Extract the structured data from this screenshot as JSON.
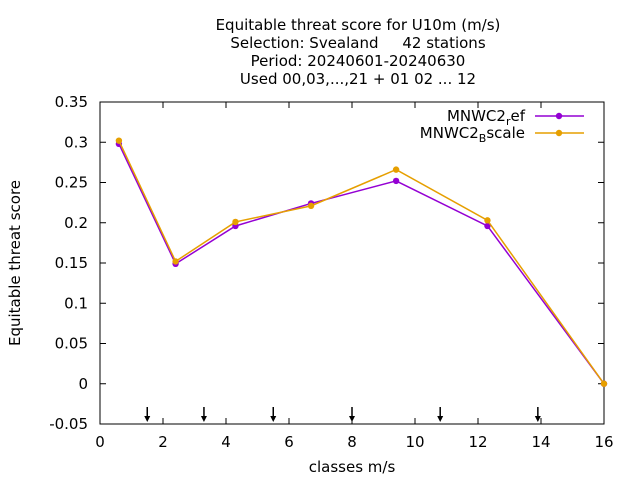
{
  "chart_data": {
    "type": "line",
    "title_lines": [
      "Equitable threat score  for U10m (m/s)",
      "Selection: Svealand     42 stations",
      "Period: 20240601-20240630",
      "Used 00,03,...,21 + 01 02 ... 12"
    ],
    "xlabel": "classes m/s",
    "ylabel": "Equitable threat score",
    "xlim": [
      0,
      16
    ],
    "ylim": [
      -0.05,
      0.35
    ],
    "x_ticks": [
      0,
      2,
      4,
      6,
      8,
      10,
      12,
      14,
      16
    ],
    "x_tick_labels": [
      "0",
      "2",
      "4",
      "6",
      "8",
      "10",
      "12",
      "14",
      "16"
    ],
    "y_ticks": [
      -0.05,
      0,
      0.05,
      0.1,
      0.15,
      0.2,
      0.25,
      0.3,
      0.35
    ],
    "y_tick_labels": [
      "-0.05",
      "0",
      "0.05",
      "0.1",
      "0.15",
      "0.2",
      "0.25",
      "0.3",
      "0.35"
    ],
    "grid": false,
    "legend_position": "top-right",
    "series": [
      {
        "name_base": "MNWC2",
        "name_sub": "r",
        "name_rest": "ef",
        "color": "#9400d3",
        "x": [
          0.6,
          2.4,
          4.3,
          6.7,
          9.4,
          12.3,
          16.0
        ],
        "y": [
          0.298,
          0.149,
          0.196,
          0.224,
          0.252,
          0.196,
          0.0
        ]
      },
      {
        "name_base": "MNWC2",
        "name_sub": "B",
        "name_rest": "scale",
        "color": "#e69f00",
        "x": [
          0.6,
          2.4,
          4.3,
          6.7,
          9.4,
          12.3,
          16.0
        ],
        "y": [
          0.302,
          0.152,
          0.201,
          0.221,
          0.266,
          0.203,
          0.0
        ]
      }
    ],
    "class_markers_x": [
      1.5,
      3.3,
      5.5,
      8.0,
      10.8,
      13.9
    ]
  }
}
